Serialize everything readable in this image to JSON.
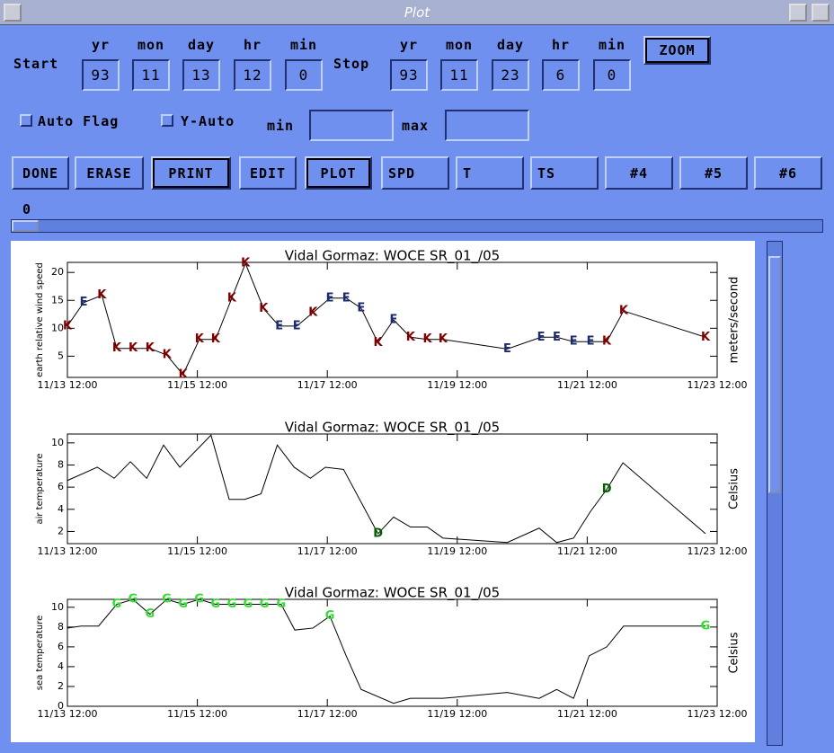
{
  "window": {
    "title": "Plot"
  },
  "time_range": {
    "start_label": "Start",
    "stop_label": "Stop",
    "field_labels": [
      "yr",
      "mon",
      "day",
      "hr",
      "min"
    ],
    "start": [
      93,
      11,
      13,
      12,
      0
    ],
    "stop": [
      93,
      11,
      23,
      6,
      0
    ]
  },
  "zoom_button": "ZOOM",
  "options": {
    "checkboxes": [
      "Auto Flag",
      "Y-Auto"
    ],
    "min_label": "min",
    "max_label": "max"
  },
  "buttons": [
    "DONE",
    "ERASE",
    "PRINT",
    "EDIT",
    "PLOT",
    "SPD",
    "T",
    "TS",
    "#4",
    "#5",
    "#6"
  ],
  "slider": {
    "value": 0
  },
  "chart_data": [
    {
      "type": "line",
      "title": "Vidal Gormaz: WOCE SR_01_/05",
      "ylabel": "earth relative wind speed",
      "ylabel_right": "meters/second",
      "color": "#000000",
      "flag_colors": {
        "K": "#800000",
        "E": "#1c2a70"
      },
      "x": [
        13.5,
        13.75,
        14.03,
        14.26,
        14.51,
        14.77,
        15.03,
        15.28,
        15.53,
        15.78,
        16.03,
        16.24,
        16.52,
        16.76,
        17.03,
        17.28,
        17.54,
        17.79,
        18.02,
        18.28,
        18.52,
        18.78,
        19.04,
        19.28,
        20.27,
        20.79,
        21.03,
        21.29,
        21.55,
        21.8,
        22.06,
        23.32
      ],
      "values": [
        10.4,
        14.6,
        15.9,
        6.4,
        6.4,
        6.4,
        5.2,
        1.7,
        8.0,
        8.0,
        15.4,
        21.6,
        13.5,
        10.4,
        10.4,
        12.8,
        15.4,
        15.4,
        13.6,
        7.4,
        11.5,
        8.4,
        8.0,
        8.0,
        6.3,
        8.4,
        8.4,
        7.6,
        7.6,
        7.6,
        13.1,
        8.4
      ],
      "flags": [
        "K",
        "E",
        "K",
        "K",
        "K",
        "K",
        "K",
        "K",
        "K",
        "K",
        "K",
        "K",
        "K",
        "E",
        "E",
        "K",
        "E",
        "E",
        "E",
        "K",
        "E",
        "K",
        "K",
        "K",
        "E",
        "E",
        "E",
        "E",
        "E",
        "K",
        "K",
        "K"
      ],
      "xlim": [
        13.5,
        23.5
      ],
      "ylim": [
        1.2,
        21.8
      ],
      "xticks": [
        {
          "value": 13.5,
          "label": "11/13 12:00"
        },
        {
          "value": 15.5,
          "label": "11/15 12:00"
        },
        {
          "value": 17.5,
          "label": "11/17 12:00"
        },
        {
          "value": 19.5,
          "label": "11/19 12:00"
        },
        {
          "value": 21.5,
          "label": "11/21 12:00"
        },
        {
          "value": 23.5,
          "label": "11/23 12:00"
        }
      ],
      "yticks": [
        5,
        10,
        15,
        20
      ]
    },
    {
      "type": "line",
      "title": "Vidal Gormaz: WOCE SR_01_/05",
      "ylabel": "air temperature",
      "ylabel_right": "Celsius",
      "color": "#000000",
      "flag_colors": {
        "D": "#006000"
      },
      "x": [
        13.5,
        13.96,
        14.22,
        14.47,
        14.72,
        14.98,
        15.23,
        15.71,
        15.99,
        16.23,
        16.48,
        16.73,
        16.99,
        17.24,
        17.47,
        17.75,
        18.28,
        18.52,
        18.78,
        19.04,
        19.28,
        20.27,
        20.76,
        21.03,
        21.29,
        21.55,
        21.8,
        22.05,
        23.32
      ],
      "values": [
        6.6,
        7.8,
        6.8,
        8.3,
        6.8,
        9.8,
        7.8,
        10.7,
        4.9,
        4.9,
        5.4,
        9.8,
        7.8,
        6.8,
        7.8,
        7.6,
        1.8,
        3.3,
        2.4,
        2.4,
        1.4,
        1.0,
        2.3,
        1.0,
        1.4,
        3.8,
        5.8,
        8.2,
        1.8
      ],
      "flags": [
        null,
        null,
        null,
        null,
        null,
        null,
        null,
        null,
        null,
        null,
        null,
        null,
        null,
        null,
        null,
        null,
        "D",
        null,
        null,
        null,
        null,
        null,
        null,
        null,
        null,
        null,
        "D",
        null,
        null
      ],
      "xlim": [
        13.5,
        23.5
      ],
      "ylim": [
        0.9,
        10.8
      ],
      "xticks": [
        {
          "value": 13.5,
          "label": "11/13 12:00"
        },
        {
          "value": 15.5,
          "label": "11/15 12:00"
        },
        {
          "value": 17.5,
          "label": "11/17 12:00"
        },
        {
          "value": 19.5,
          "label": "11/19 12:00"
        },
        {
          "value": 21.5,
          "label": "11/21 12:00"
        },
        {
          "value": 23.5,
          "label": "11/23 12:00"
        }
      ],
      "yticks": [
        2,
        4,
        6,
        8,
        10
      ]
    },
    {
      "type": "line",
      "title": "Vidal Gormaz: WOCE SR_01_/05",
      "ylabel": "sea temperature",
      "ylabel_right": "Celsius",
      "color": "#000000",
      "flag_colors": {
        "G": "#33dd33"
      },
      "x": [
        13.5,
        13.71,
        13.98,
        14.26,
        14.51,
        14.77,
        15.03,
        15.28,
        15.53,
        15.78,
        16.03,
        16.28,
        16.53,
        16.79,
        17.0,
        17.28,
        17.54,
        17.79,
        18.02,
        18.52,
        18.78,
        19.28,
        20.27,
        20.76,
        21.03,
        21.29,
        21.53,
        21.8,
        22.06,
        23.32
      ],
      "values": [
        7.9,
        8.1,
        8.1,
        10.3,
        10.8,
        9.3,
        10.8,
        10.3,
        10.8,
        10.3,
        10.3,
        10.3,
        10.3,
        10.3,
        7.7,
        7.9,
        9.1,
        5.1,
        1.7,
        0.3,
        0.8,
        0.8,
        1.4,
        0.8,
        1.7,
        0.8,
        5.1,
        6.0,
        8.1,
        8.1
      ],
      "flags": [
        null,
        null,
        null,
        "G",
        "G",
        "G",
        "G",
        "G",
        "G",
        "G",
        "G",
        "G",
        "G",
        "G",
        null,
        null,
        "G",
        null,
        null,
        null,
        null,
        null,
        null,
        null,
        null,
        null,
        null,
        null,
        null,
        "G"
      ],
      "xlim": [
        13.5,
        23.5
      ],
      "ylim": [
        0,
        10.8
      ],
      "xticks": [
        {
          "value": 13.5,
          "label": "11/13 12:00"
        },
        {
          "value": 15.5,
          "label": "11/15 12:00"
        },
        {
          "value": 17.5,
          "label": "11/17 12:00"
        },
        {
          "value": 19.5,
          "label": "11/19 12:00"
        },
        {
          "value": 21.5,
          "label": "11/21 12:00"
        },
        {
          "value": 23.5,
          "label": "11/23 12:00"
        }
      ],
      "yticks": [
        0,
        2,
        4,
        6,
        8,
        10
      ]
    }
  ]
}
